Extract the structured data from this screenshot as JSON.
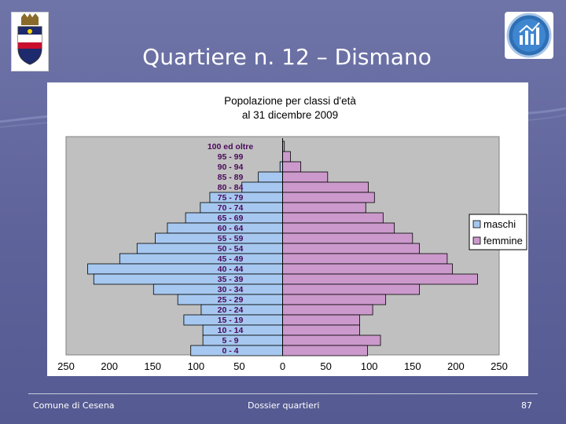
{
  "slide": {
    "title": "Quartiere n. 12 – Dismano",
    "footer_left": "Comune di Cesena",
    "footer_center": "Dossier quartieri",
    "page_number": "87"
  },
  "chart_data": {
    "type": "bar",
    "orientation": "horizontal",
    "title_line1": "Popolazione per classi d'età",
    "title_line2": "al 31 dicembre 2009",
    "categories": [
      "100 ed oltre",
      "95 - 99",
      "90 - 94",
      "85 - 89",
      "80 - 84",
      "75 - 79",
      "70 - 74",
      "65 - 69",
      "60 - 64",
      "55 - 59",
      "50 - 54",
      "45 - 49",
      "40 - 44",
      "35 - 39",
      "30 - 34",
      "25 - 29",
      "20 - 24",
      "15 - 19",
      "10 - 14",
      "5 - 9",
      "0 - 4"
    ],
    "series": [
      {
        "name": "maschi",
        "color": "#a6c8f0",
        "values": [
          0,
          0,
          3,
          28,
          47,
          84,
          95,
          112,
          133,
          147,
          168,
          188,
          225,
          218,
          149,
          121,
          94,
          114,
          92,
          92,
          106
        ]
      },
      {
        "name": "femmine",
        "color": "#cc99cc",
        "values": [
          2,
          9,
          21,
          52,
          99,
          106,
          96,
          116,
          129,
          150,
          158,
          190,
          196,
          225,
          158,
          119,
          104,
          89,
          89,
          113,
          98
        ]
      }
    ],
    "xlim": [
      -250,
      250
    ],
    "x_ticks": [
      -250,
      -200,
      -150,
      -100,
      -50,
      0,
      50,
      100,
      150,
      200,
      250
    ],
    "x_tick_labels": [
      "250",
      "200",
      "150",
      "100",
      "50",
      "0",
      "50",
      "100",
      "150",
      "200",
      "250"
    ],
    "legend_position": "right",
    "grid": false,
    "plot_background": "#c0c0c0"
  }
}
